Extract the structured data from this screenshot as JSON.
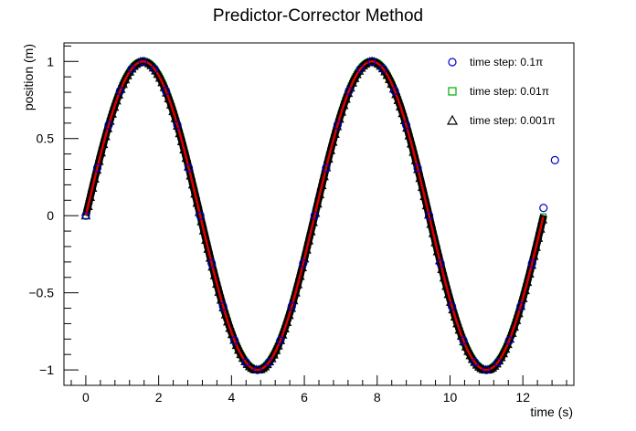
{
  "chart_data": {
    "type": "scatter",
    "title": "Predictor-Corrector Method",
    "xlabel": "time (s)",
    "ylabel": "position (m)",
    "xlim": [
      -0.6,
      13.4
    ],
    "ylim": [
      -1.1,
      1.12
    ],
    "x_ticks": [
      0,
      2,
      4,
      6,
      8,
      10,
      12
    ],
    "x_tick_labels": [
      "0",
      "2",
      "4",
      "6",
      "8",
      "10",
      "12"
    ],
    "y_ticks": [
      -1,
      -0.5,
      0,
      0.5,
      1
    ],
    "y_tick_labels": [
      "−1",
      "−0.5",
      "0",
      "0.5",
      "1"
    ],
    "grid": false,
    "legend_position": "top-right",
    "function": "sin(t)",
    "t_range": [
      0,
      12.57
    ],
    "series": [
      {
        "name": "time step: 0.1π",
        "marker": "circle",
        "color": "#0000cc",
        "step": 0.314,
        "x": [
          0,
          0.314,
          0.628,
          0.942,
          1.257,
          1.571,
          1.885,
          2.199,
          2.513,
          2.827,
          3.142,
          3.456,
          3.77,
          4.084,
          4.398,
          4.712,
          5.027,
          5.341,
          5.655,
          5.969,
          6.283,
          6.597,
          6.912,
          7.226,
          7.54,
          7.854,
          8.168,
          8.482,
          8.796,
          9.111,
          9.425,
          9.739,
          10.053,
          10.367,
          10.681,
          10.996,
          11.31,
          11.624,
          11.938,
          12.252,
          12.566,
          12.88
        ],
        "y": [
          0,
          0.309,
          0.588,
          0.809,
          0.951,
          1.0,
          0.951,
          0.809,
          0.588,
          0.309,
          0,
          -0.309,
          -0.588,
          -0.809,
          -0.951,
          -1.0,
          -0.951,
          -0.809,
          -0.588,
          -0.309,
          0,
          0.309,
          0.588,
          0.809,
          0.951,
          1.0,
          0.951,
          0.809,
          0.588,
          0.309,
          0,
          -0.309,
          -0.588,
          -0.809,
          -0.951,
          -1.0,
          -0.951,
          -0.809,
          -0.588,
          -0.309,
          0.05,
          0.36
        ]
      },
      {
        "name": "time step: 0.01π",
        "marker": "square",
        "color": "#00aa00",
        "step": 0.0314
      },
      {
        "name": "time step: 0.001π",
        "marker": "triangle",
        "color": "#000000",
        "step": 0.00314
      }
    ],
    "reference_curve": {
      "color": "#dd0000",
      "function": "sin(t)"
    }
  }
}
